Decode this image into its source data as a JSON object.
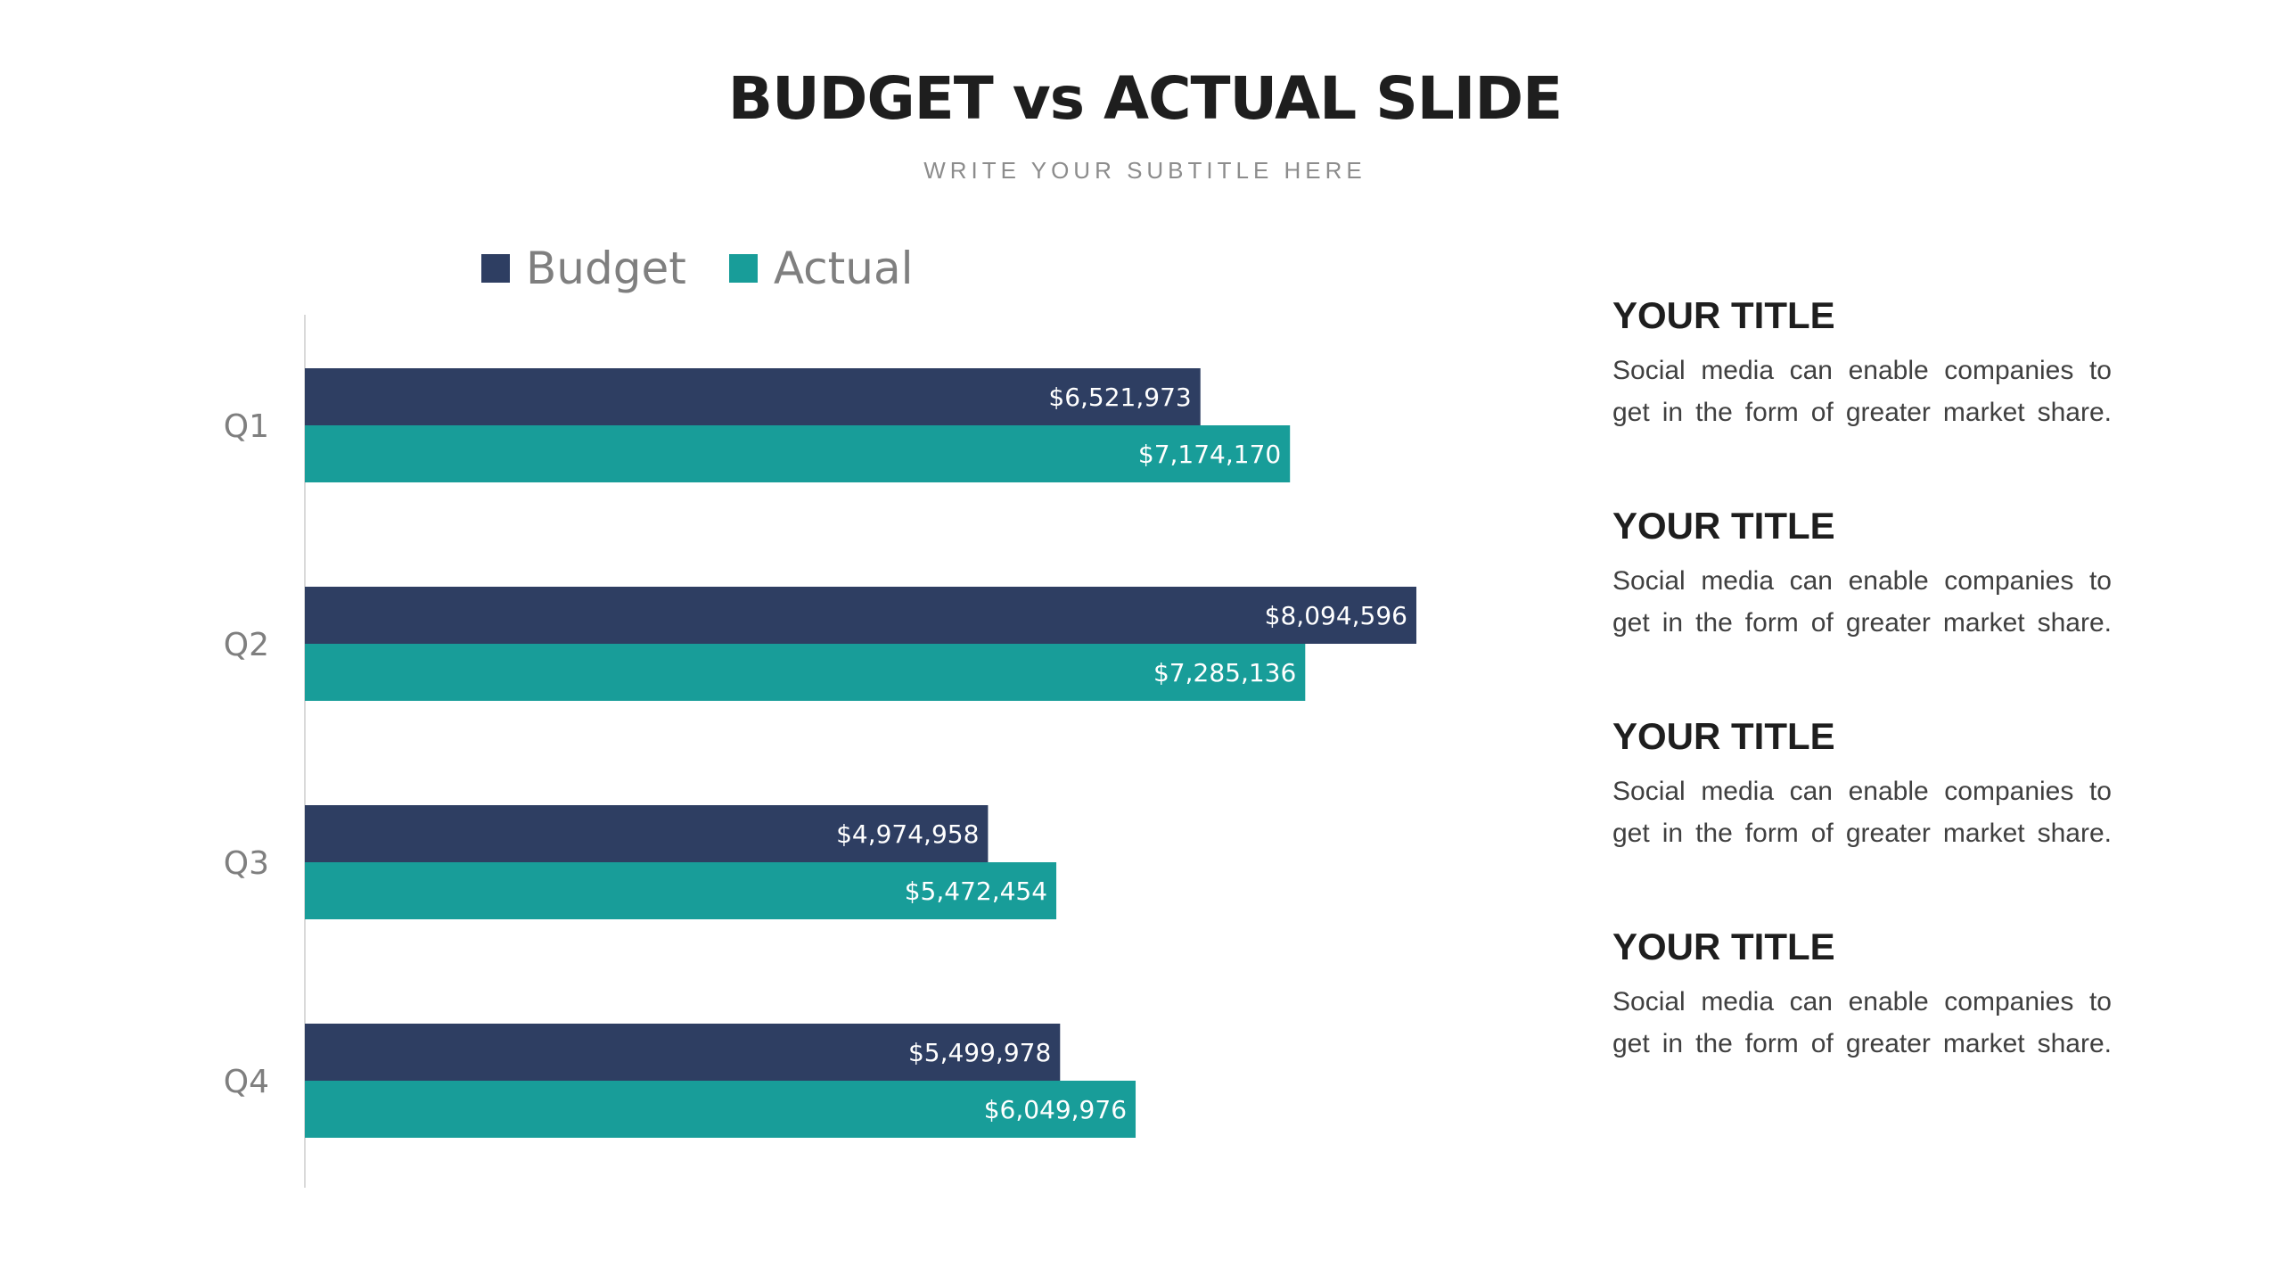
{
  "header": {
    "title": "BUDGET vs ACTUAL SLIDE",
    "subtitle": "WRITE YOUR SUBTITLE HERE"
  },
  "chart_data": {
    "type": "bar",
    "orientation": "horizontal",
    "categories": [
      "Q1",
      "Q2",
      "Q3",
      "Q4"
    ],
    "series": [
      {
        "name": "Budget",
        "color": "#2e3e62",
        "values": [
          6521973,
          8094596,
          4974958,
          5499978
        ],
        "labels": [
          "$6,521,973",
          "$8,094,596",
          "$4,974,958",
          "$5,499,978"
        ]
      },
      {
        "name": "Actual",
        "color": "#189d99",
        "values": [
          7174170,
          7285136,
          5472454,
          6049976
        ],
        "labels": [
          "$7,174,170",
          "$7,285,136",
          "$5,472,454",
          "$6,049,976"
        ]
      }
    ],
    "legend": "top",
    "grid": false,
    "xlim": [
      0,
      8094596
    ]
  },
  "side": {
    "items": [
      {
        "title": "YOUR TITLE",
        "text": "Social media can enable companies to get in the form of greater market share."
      },
      {
        "title": "YOUR TITLE",
        "text": "Social media can enable companies to get in the form of greater market share."
      },
      {
        "title": "YOUR TITLE",
        "text": "Social media can enable companies to get in the form of greater market share."
      },
      {
        "title": "YOUR TITLE",
        "text": "Social media can enable companies to get in the form of greater market share."
      }
    ]
  }
}
